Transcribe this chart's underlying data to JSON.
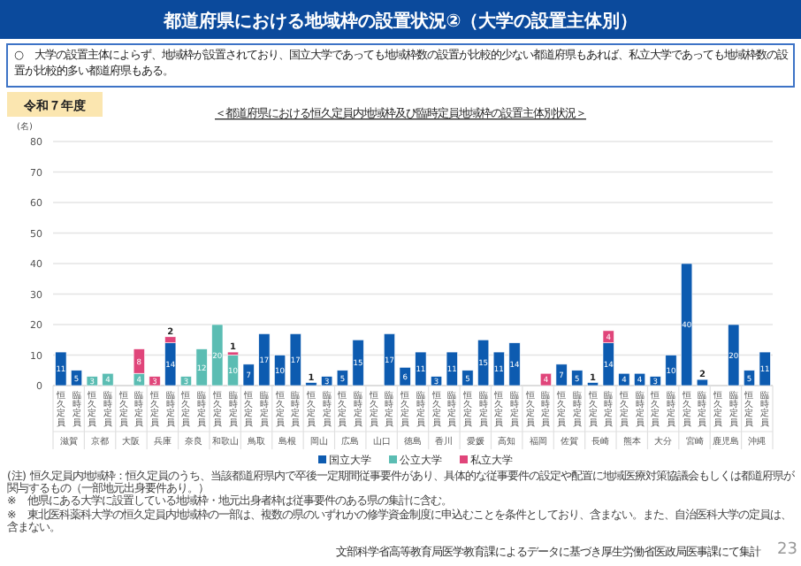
{
  "chart_data": {
    "type": "bar",
    "stacked": true,
    "title": "都道府県における地域枠の設置状況②（大学の設置主体別）",
    "subtitle": "＜都道府県における恒久定員内地域枠及び臨時定員地域枠の設置主体別状況＞",
    "ylabel": "(名)",
    "categories": [
      "恒久定員",
      "臨時定員",
      "恒久定員",
      "臨時定員",
      "恒久定員",
      "臨時定員",
      "恒久定員",
      "臨時定員",
      "恒久定員",
      "臨時定員",
      "恒久定員",
      "臨時定員",
      "恒久定員",
      "臨時定員",
      "恒久定員",
      "臨時定員",
      "恒久定員",
      "臨時定員",
      "恒久定員",
      "臨時定員",
      "恒久定員",
      "臨時定員",
      "恒久定員",
      "臨時定員",
      "恒久定員",
      "臨時定員",
      "恒久定員",
      "臨時定員",
      "恒久定員",
      "臨時定員",
      "恒久定員",
      "臨時定員",
      "恒久定員",
      "臨時定員",
      "恒久定員",
      "臨時定員",
      "恒久定員",
      "臨時定員",
      "恒久定員",
      "臨時定員",
      "恒久定員",
      "臨時定員",
      "恒久定員",
      "臨時定員",
      "恒久定員",
      "臨時定員"
    ],
    "series": [
      {
        "name": "国立大学",
        "color": "#0d5bb0",
        "values": [
          11,
          5,
          null,
          null,
          null,
          null,
          null,
          14,
          null,
          null,
          null,
          null,
          7,
          17,
          10,
          17,
          1,
          3,
          5,
          15,
          null,
          17,
          6,
          11,
          3,
          11,
          5,
          15,
          11,
          14,
          null,
          null,
          7,
          5,
          1,
          14,
          4,
          4,
          3,
          10,
          40,
          2,
          null,
          20,
          5,
          11
        ]
      },
      {
        "name": "公立大学",
        "color": "#5bbdb3",
        "values": [
          null,
          null,
          3,
          4,
          null,
          4,
          null,
          null,
          3,
          12,
          20,
          10,
          null,
          null,
          null,
          null,
          null,
          null,
          null,
          null,
          null,
          null,
          null,
          null,
          null,
          null,
          null,
          null,
          null,
          null,
          null,
          null,
          null,
          null,
          null,
          null,
          null,
          null,
          null,
          null,
          null,
          null,
          null,
          null,
          null,
          null
        ]
      },
      {
        "name": "私立大学",
        "color": "#e0457a",
        "values": [
          null,
          null,
          null,
          null,
          null,
          8,
          3,
          2,
          null,
          null,
          null,
          1,
          null,
          null,
          null,
          null,
          null,
          null,
          null,
          null,
          null,
          null,
          null,
          null,
          null,
          null,
          null,
          null,
          null,
          null,
          null,
          4,
          null,
          null,
          null,
          4,
          null,
          null,
          null,
          null,
          null,
          null,
          null,
          null,
          null,
          null
        ]
      }
    ],
    "data_labels": true,
    "ylim": [
      0,
      80
    ],
    "yticks": [
      0,
      10,
      20,
      30,
      40,
      50,
      60,
      70,
      80
    ],
    "grid": "y",
    "legend": "bottom",
    "annotations": [
      "○　大学の設置主体によらず、地域枠が設置されており、国立大学であっても地域枠数の設置が比較的少ない都道府県もあれば、私立大学であっても地域枠数の設置が比較的多い都道府県もある。",
      "令和７年度",
      "滋賀",
      "京都",
      "大阪",
      "兵庫",
      "奈良",
      "和歌山",
      "鳥取",
      "島根",
      "岡山",
      "広島",
      "山口",
      "徳島",
      "香川",
      "愛媛",
      "高知",
      "福岡",
      "佐賀",
      "長崎",
      "熊本",
      "大分",
      "宮崎",
      "鹿児島",
      "沖縄",
      "(注) 恒久定員内地域枠：恒久定員のうち、当該都道府県内で卒後一定期間従事要件があり、具体的な従事要件の設定や配置に地域医療対策協議会もしくは都道府県が関与するもの（一部地元出身要件あり。）",
      "※　他県にある大学に設置している地域枠・地元出身者枠は従事要件のある県の集計に含む。",
      "※　東北医科薬科大学の恒久定員内地域枠の一部は、複数の県のいずれかの修学資金制度に申込むことを条件としており、含まない。また、自治医科大学の定員は、含まない。",
      "文部科学省高等教育局医学教育課によるデータに基づき厚生労働省医政局医事課にて集計",
      "23"
    ]
  }
}
